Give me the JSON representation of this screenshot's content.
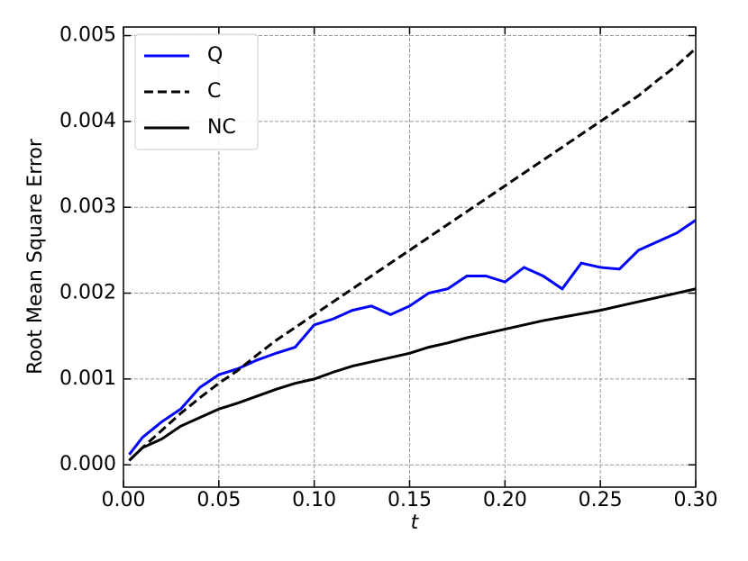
{
  "chart_data": {
    "type": "line",
    "x_label": "t",
    "y_label": "Root Mean Square Error",
    "x": [
      0.003,
      0.01,
      0.02,
      0.03,
      0.04,
      0.05,
      0.06,
      0.07,
      0.08,
      0.09,
      0.1,
      0.11,
      0.12,
      0.13,
      0.14,
      0.15,
      0.16,
      0.17,
      0.18,
      0.19,
      0.2,
      0.21,
      0.22,
      0.23,
      0.24,
      0.25,
      0.26,
      0.27,
      0.28,
      0.29,
      0.3
    ],
    "series": [
      {
        "name": "Q",
        "color": "#0000ff",
        "linestyle": "solid",
        "values": [
          0.00012,
          0.00032,
          0.0005,
          0.00065,
          0.0009,
          0.00105,
          0.00112,
          0.00122,
          0.0013,
          0.00137,
          0.00163,
          0.0017,
          0.0018,
          0.00185,
          0.00175,
          0.00185,
          0.002,
          0.00205,
          0.0022,
          0.0022,
          0.00213,
          0.0023,
          0.0022,
          0.00205,
          0.00235,
          0.0023,
          0.00228,
          0.0025,
          0.0026,
          0.0027,
          0.00285
        ]
      },
      {
        "name": "C",
        "color": "#000000",
        "linestyle": "dashed",
        "values": [
          5e-05,
          0.0002,
          0.0004,
          0.0006,
          0.00078,
          0.00095,
          0.0011,
          0.00128,
          0.00145,
          0.0016,
          0.00175,
          0.0019,
          0.00205,
          0.0022,
          0.00235,
          0.0025,
          0.00265,
          0.0028,
          0.00295,
          0.0031,
          0.00325,
          0.0034,
          0.00355,
          0.0037,
          0.00385,
          0.004,
          0.00415,
          0.0043,
          0.00448,
          0.00465,
          0.00485
        ]
      },
      {
        "name": "NC",
        "color": "#000000",
        "linestyle": "solid",
        "values": [
          5e-05,
          0.0002,
          0.0003,
          0.00045,
          0.00055,
          0.00065,
          0.00072,
          0.0008,
          0.00088,
          0.00095,
          0.001,
          0.00108,
          0.00115,
          0.0012,
          0.00125,
          0.0013,
          0.00137,
          0.00142,
          0.00148,
          0.00153,
          0.00158,
          0.00163,
          0.00168,
          0.00172,
          0.00176,
          0.0018,
          0.00185,
          0.0019,
          0.00195,
          0.002,
          0.00205
        ]
      }
    ],
    "xlim": [
      0,
      0.3
    ],
    "ylim": [
      -0.00026,
      0.0051
    ],
    "xticks": [
      {
        "value": 0,
        "label": "0.00"
      },
      {
        "value": 0.05,
        "label": "0.05"
      },
      {
        "value": 0.1,
        "label": "0.10"
      },
      {
        "value": 0.15,
        "label": "0.15"
      },
      {
        "value": 0.2,
        "label": "0.20"
      },
      {
        "value": 0.25,
        "label": "0.25"
      },
      {
        "value": 0.3,
        "label": "0.30"
      }
    ],
    "yticks": [
      {
        "value": 0,
        "label": "0.000"
      },
      {
        "value": 0.001,
        "label": "0.001"
      },
      {
        "value": 0.002,
        "label": "0.002"
      },
      {
        "value": 0.003,
        "label": "0.003"
      },
      {
        "value": 0.004,
        "label": "0.004"
      },
      {
        "value": 0.005,
        "label": "0.005"
      }
    ],
    "grid": true,
    "legend": "upper left"
  }
}
